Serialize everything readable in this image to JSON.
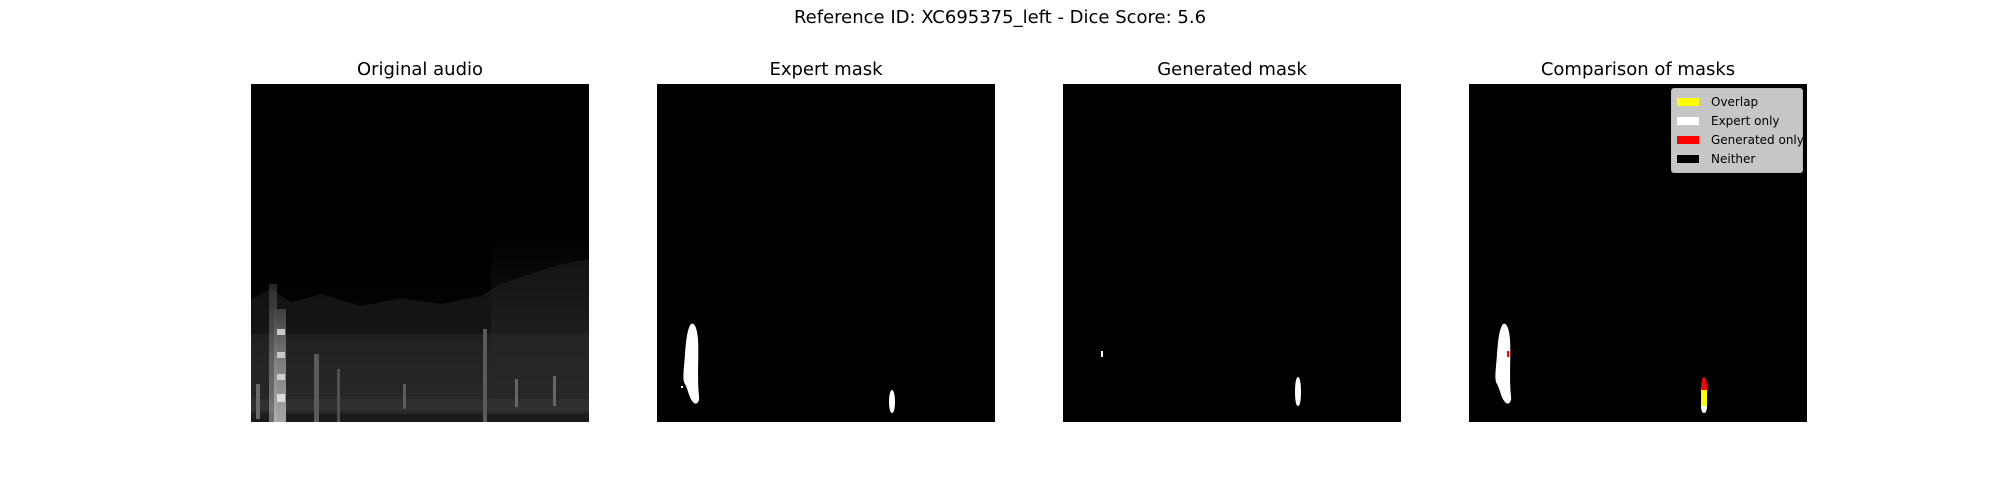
{
  "figure": {
    "suptitle": "Reference ID: XC695375_left - Dice Score: 5.6",
    "panels": [
      {
        "title": "Original audio"
      },
      {
        "title": "Expert mask"
      },
      {
        "title": "Generated mask"
      },
      {
        "title": "Comparison of masks"
      }
    ],
    "legend": [
      {
        "label": "Overlap",
        "color": "#ffff00"
      },
      {
        "label": "Expert only",
        "color": "#ffffff"
      },
      {
        "label": "Generated only",
        "color": "#ff0000"
      },
      {
        "label": "Neither",
        "color": "#000000"
      }
    ]
  }
}
